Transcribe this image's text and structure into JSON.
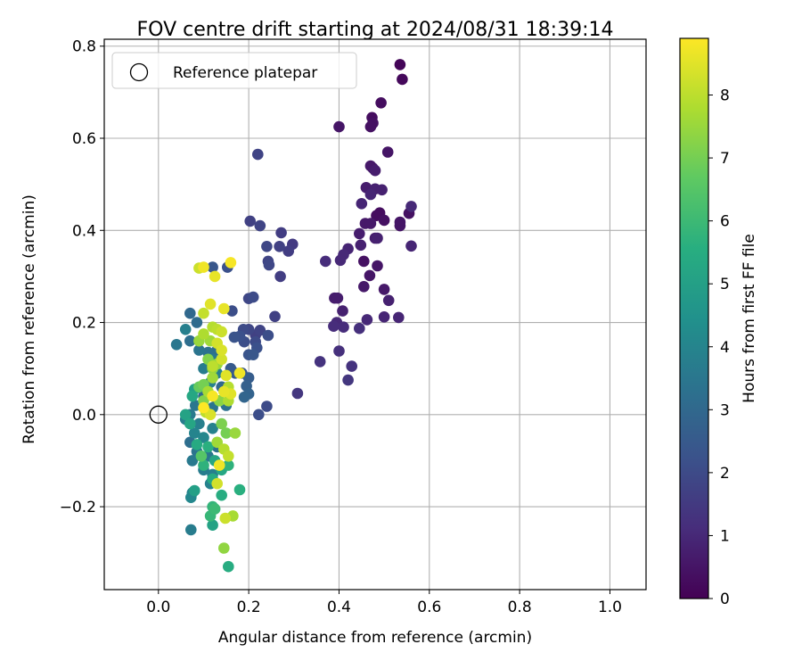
{
  "chart_data": {
    "type": "scatter",
    "title": "FOV centre drift starting at 2024/08/31 18:39:14",
    "xlabel": "Angular distance from reference (arcmin)",
    "ylabel": "Rotation from reference (arcmin)",
    "xlim": [
      -0.12,
      1.08
    ],
    "ylim": [
      -0.38,
      0.815
    ],
    "xticks": [
      0.0,
      0.2,
      0.4,
      0.6,
      0.8,
      1.0
    ],
    "xtick_labels": [
      "0.0",
      "0.2",
      "0.4",
      "0.6",
      "0.8",
      "1.0"
    ],
    "yticks": [
      -0.2,
      0.0,
      0.2,
      0.4,
      0.6,
      0.8
    ],
    "ytick_labels": [
      "−0.2",
      "0.0",
      "0.2",
      "0.4",
      "0.6",
      "0.8"
    ],
    "grid": true,
    "legend": {
      "placement": "top-left",
      "entries": [
        "Reference platepar"
      ]
    },
    "reference_point": {
      "x": 0.0,
      "y": 0.0,
      "label": "Reference platepar"
    },
    "colorbar": {
      "label": "Hours from first FF file",
      "range": [
        0,
        8.9
      ],
      "ticks": [
        0,
        1,
        2,
        3,
        4,
        5,
        6,
        7,
        8
      ],
      "tick_labels": [
        "0",
        "1",
        "2",
        "3",
        "4",
        "5",
        "6",
        "7",
        "8"
      ],
      "colormap": "viridis"
    },
    "points": [
      [
        0.535,
        0.76,
        0.1
      ],
      [
        0.54,
        0.728,
        0.2
      ],
      [
        0.493,
        0.677,
        0.3
      ],
      [
        0.473,
        0.645,
        0.3
      ],
      [
        0.475,
        0.633,
        0.4
      ],
      [
        0.47,
        0.625,
        0.4
      ],
      [
        0.4,
        0.625,
        0.5
      ],
      [
        0.508,
        0.57,
        0.5
      ],
      [
        0.47,
        0.54,
        0.6
      ],
      [
        0.475,
        0.535,
        0.6
      ],
      [
        0.48,
        0.53,
        0.7
      ],
      [
        0.46,
        0.493,
        0.7
      ],
      [
        0.48,
        0.49,
        0.8
      ],
      [
        0.495,
        0.488,
        0.8
      ],
      [
        0.47,
        0.478,
        0.9
      ],
      [
        0.45,
        0.458,
        0.9
      ],
      [
        0.56,
        0.452,
        1.0
      ],
      [
        0.49,
        0.438,
        0.3
      ],
      [
        0.483,
        0.432,
        0.3
      ],
      [
        0.5,
        0.422,
        0.4
      ],
      [
        0.555,
        0.437,
        0.4
      ],
      [
        0.535,
        0.418,
        0.5
      ],
      [
        0.535,
        0.41,
        0.5
      ],
      [
        0.458,
        0.415,
        0.6
      ],
      [
        0.47,
        0.415,
        0.6
      ],
      [
        0.445,
        0.393,
        0.7
      ],
      [
        0.48,
        0.383,
        0.7
      ],
      [
        0.485,
        0.383,
        0.8
      ],
      [
        0.448,
        0.368,
        0.8
      ],
      [
        0.56,
        0.366,
        0.9
      ],
      [
        0.42,
        0.36,
        0.9
      ],
      [
        0.41,
        0.347,
        1.0
      ],
      [
        0.403,
        0.335,
        1.0
      ],
      [
        0.37,
        0.333,
        1.1
      ],
      [
        0.455,
        0.333,
        0.4
      ],
      [
        0.485,
        0.323,
        0.5
      ],
      [
        0.468,
        0.302,
        0.5
      ],
      [
        0.455,
        0.278,
        0.6
      ],
      [
        0.5,
        0.272,
        0.6
      ],
      [
        0.39,
        0.253,
        0.7
      ],
      [
        0.397,
        0.253,
        0.7
      ],
      [
        0.51,
        0.248,
        0.8
      ],
      [
        0.408,
        0.225,
        0.8
      ],
      [
        0.5,
        0.212,
        0.9
      ],
      [
        0.532,
        0.211,
        0.9
      ],
      [
        0.462,
        0.206,
        1.0
      ],
      [
        0.395,
        0.2,
        1.0
      ],
      [
        0.388,
        0.192,
        1.1
      ],
      [
        0.41,
        0.19,
        1.1
      ],
      [
        0.445,
        0.187,
        1.2
      ],
      [
        0.4,
        0.138,
        1.2
      ],
      [
        0.358,
        0.115,
        1.3
      ],
      [
        0.428,
        0.105,
        1.3
      ],
      [
        0.42,
        0.075,
        1.4
      ],
      [
        0.308,
        0.046,
        1.4
      ],
      [
        0.22,
        0.565,
        1.8
      ],
      [
        0.203,
        0.42,
        1.7
      ],
      [
        0.225,
        0.41,
        1.8
      ],
      [
        0.272,
        0.395,
        1.6
      ],
      [
        0.24,
        0.365,
        1.9
      ],
      [
        0.268,
        0.365,
        1.7
      ],
      [
        0.297,
        0.37,
        1.5
      ],
      [
        0.288,
        0.355,
        1.6
      ],
      [
        0.243,
        0.333,
        1.8
      ],
      [
        0.245,
        0.325,
        1.9
      ],
      [
        0.27,
        0.3,
        1.6
      ],
      [
        0.153,
        0.32,
        2.2
      ],
      [
        0.21,
        0.255,
        2.0
      ],
      [
        0.2,
        0.252,
        1.9
      ],
      [
        0.258,
        0.213,
        1.7
      ],
      [
        0.163,
        0.225,
        2.1
      ],
      [
        0.188,
        0.185,
        2.0
      ],
      [
        0.2,
        0.185,
        1.9
      ],
      [
        0.225,
        0.183,
        1.8
      ],
      [
        0.215,
        0.173,
        1.7
      ],
      [
        0.243,
        0.172,
        2.1
      ],
      [
        0.18,
        0.17,
        2.2
      ],
      [
        0.168,
        0.168,
        2.3
      ],
      [
        0.215,
        0.158,
        2.0
      ],
      [
        0.19,
        0.158,
        2.1
      ],
      [
        0.218,
        0.145,
        2.2
      ],
      [
        0.2,
        0.13,
        2.3
      ],
      [
        0.21,
        0.13,
        2.4
      ],
      [
        0.16,
        0.1,
        2.5
      ],
      [
        0.185,
        0.09,
        2.4
      ],
      [
        0.17,
        0.09,
        2.5
      ],
      [
        0.2,
        0.08,
        2.6
      ],
      [
        0.195,
        0.062,
        2.7
      ],
      [
        0.2,
        0.045,
        2.8
      ],
      [
        0.19,
        0.038,
        2.9
      ],
      [
        0.24,
        0.018,
        2.0
      ],
      [
        0.222,
        0.0,
        2.1
      ],
      [
        0.12,
        0.32,
        2.4
      ],
      [
        0.07,
        0.22,
        3.0
      ],
      [
        0.085,
        0.2,
        3.1
      ],
      [
        0.06,
        0.185,
        3.8
      ],
      [
        0.07,
        0.16,
        3.2
      ],
      [
        0.04,
        0.152,
        3.5
      ],
      [
        0.09,
        0.14,
        3.4
      ],
      [
        0.11,
        0.135,
        3.3
      ],
      [
        0.13,
        0.14,
        3.2
      ],
      [
        0.12,
        0.12,
        3.6
      ],
      [
        0.1,
        0.1,
        3.7
      ],
      [
        0.13,
        0.09,
        3.8
      ],
      [
        0.115,
        0.07,
        3.9
      ],
      [
        0.14,
        0.06,
        3.0
      ],
      [
        0.1,
        0.04,
        3.1
      ],
      [
        0.13,
        0.03,
        3.2
      ],
      [
        0.15,
        0.02,
        3.3
      ],
      [
        0.12,
        0.015,
        3.4
      ],
      [
        0.082,
        0.02,
        3.5
      ],
      [
        0.07,
        0.0,
        3.6
      ],
      [
        0.06,
        -0.01,
        3.7
      ],
      [
        0.09,
        -0.02,
        3.8
      ],
      [
        0.12,
        -0.03,
        3.9
      ],
      [
        0.08,
        -0.04,
        4.0
      ],
      [
        0.1,
        -0.05,
        4.1
      ],
      [
        0.07,
        -0.06,
        3.2
      ],
      [
        0.13,
        -0.07,
        3.3
      ],
      [
        0.085,
        -0.08,
        3.4
      ],
      [
        0.11,
        -0.09,
        3.5
      ],
      [
        0.075,
        -0.1,
        3.6
      ],
      [
        0.1,
        -0.12,
        3.7
      ],
      [
        0.12,
        -0.13,
        3.8
      ],
      [
        0.115,
        -0.15,
        3.9
      ],
      [
        0.075,
        -0.17,
        4.0
      ],
      [
        0.072,
        -0.18,
        4.1
      ],
      [
        0.072,
        -0.25,
        3.7
      ],
      [
        0.08,
        0.055,
        5.0
      ],
      [
        0.07,
        -0.02,
        5.2
      ],
      [
        0.06,
        0.0,
        5.1
      ],
      [
        0.075,
        0.04,
        5.3
      ],
      [
        0.085,
        -0.065,
        5.4
      ],
      [
        0.095,
        -0.09,
        5.5
      ],
      [
        0.11,
        -0.07,
        5.6
      ],
      [
        0.1,
        -0.11,
        5.7
      ],
      [
        0.125,
        -0.1,
        5.2
      ],
      [
        0.14,
        -0.12,
        5.3
      ],
      [
        0.12,
        -0.14,
        5.4
      ],
      [
        0.14,
        -0.175,
        5.5
      ],
      [
        0.18,
        -0.163,
        5.6
      ],
      [
        0.155,
        -0.11,
        5.7
      ],
      [
        0.12,
        -0.2,
        5.8
      ],
      [
        0.115,
        -0.22,
        5.9
      ],
      [
        0.125,
        -0.205,
        6.0
      ],
      [
        0.12,
        -0.24,
        5.1
      ],
      [
        0.155,
        -0.33,
        5.5
      ],
      [
        0.08,
        -0.165,
        5.0
      ],
      [
        0.09,
        0.16,
        7.5
      ],
      [
        0.1,
        0.175,
        7.8
      ],
      [
        0.12,
        0.19,
        7.9
      ],
      [
        0.13,
        0.185,
        8.0
      ],
      [
        0.14,
        0.18,
        8.2
      ],
      [
        0.115,
        0.16,
        7.6
      ],
      [
        0.13,
        0.155,
        8.3
      ],
      [
        0.14,
        0.14,
        8.4
      ],
      [
        0.1,
        0.22,
        8.1
      ],
      [
        0.115,
        0.24,
        8.5
      ],
      [
        0.145,
        0.23,
        8.6
      ],
      [
        0.1,
        0.32,
        8.7
      ],
      [
        0.09,
        0.318,
        8.2
      ],
      [
        0.16,
        0.33,
        8.8
      ],
      [
        0.125,
        0.3,
        8.6
      ],
      [
        0.11,
        0.12,
        7.2
      ],
      [
        0.12,
        0.1,
        7.4
      ],
      [
        0.13,
        0.11,
        7.5
      ],
      [
        0.14,
        0.12,
        8.3
      ],
      [
        0.15,
        0.085,
        8.5
      ],
      [
        0.18,
        0.09,
        8.7
      ],
      [
        0.12,
        0.08,
        7.6
      ],
      [
        0.1,
        0.065,
        7.0
      ],
      [
        0.09,
        0.06,
        6.8
      ],
      [
        0.11,
        0.05,
        7.7
      ],
      [
        0.155,
        0.06,
        7.9
      ],
      [
        0.145,
        0.05,
        8.6
      ],
      [
        0.12,
        0.04,
        8.8
      ],
      [
        0.1,
        0.03,
        7.2
      ],
      [
        0.135,
        0.03,
        7.3
      ],
      [
        0.155,
        0.03,
        7.8
      ],
      [
        0.1,
        0.015,
        8.9
      ],
      [
        0.115,
        0.0,
        8.4
      ],
      [
        0.105,
        0.005,
        8.0
      ],
      [
        0.14,
        -0.02,
        7.1
      ],
      [
        0.17,
        -0.04,
        7.5
      ],
      [
        0.15,
        -0.04,
        7.0
      ],
      [
        0.13,
        -0.06,
        7.6
      ],
      [
        0.145,
        -0.075,
        7.9
      ],
      [
        0.155,
        -0.09,
        8.1
      ],
      [
        0.095,
        -0.09,
        6.5
      ],
      [
        0.135,
        -0.11,
        8.7
      ],
      [
        0.165,
        -0.22,
        7.7
      ],
      [
        0.148,
        -0.225,
        8.2
      ],
      [
        0.13,
        -0.15,
        8.3
      ],
      [
        0.145,
        -0.29,
        7.4
      ],
      [
        0.16,
        0.045,
        8.5
      ],
      [
        0.12,
        0.105,
        8.0
      ]
    ]
  }
}
